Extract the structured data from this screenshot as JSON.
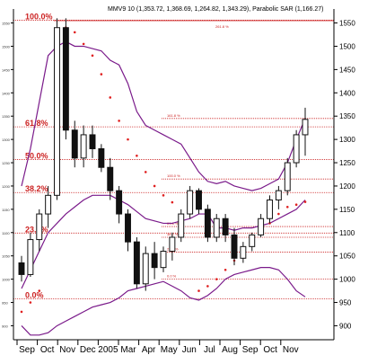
{
  "chart_data": {
    "type": "candlestick",
    "title": "MMV9 10 (1,353.72, 1,368.69, 1,264.82, 1,343.29), Parabolic SAR (1,166.27)",
    "xlabel": "",
    "ylabel": "",
    "ylim": [
      870,
      1580
    ],
    "y_ticks": [
      900,
      950,
      1000,
      1050,
      1100,
      1150,
      1200,
      1250,
      1300,
      1350,
      1400,
      1450,
      1500,
      1550
    ],
    "x_ticks": [
      "Sep",
      "Oct",
      "Nov",
      "Dec",
      "2005",
      "Mar",
      "Apr",
      "May",
      "Jun",
      "Jul",
      "Aug",
      "Sep",
      "Oct",
      "Nov"
    ],
    "grid": false,
    "candles": [
      {
        "open": 1035,
        "high": 1050,
        "low": 995,
        "close": 1010
      },
      {
        "open": 1010,
        "high": 1100,
        "low": 1005,
        "close": 1085
      },
      {
        "open": 1085,
        "high": 1150,
        "low": 1060,
        "close": 1140
      },
      {
        "open": 1140,
        "high": 1200,
        "low": 1110,
        "close": 1180
      },
      {
        "open": 1180,
        "high": 1560,
        "low": 1170,
        "close": 1540
      },
      {
        "open": 1540,
        "high": 1560,
        "low": 1300,
        "close": 1320
      },
      {
        "open": 1320,
        "high": 1340,
        "low": 1240,
        "close": 1260
      },
      {
        "open": 1260,
        "high": 1330,
        "low": 1240,
        "close": 1310
      },
      {
        "open": 1310,
        "high": 1330,
        "low": 1260,
        "close": 1280
      },
      {
        "open": 1280,
        "high": 1290,
        "low": 1230,
        "close": 1240
      },
      {
        "open": 1240,
        "high": 1260,
        "low": 1170,
        "close": 1190
      },
      {
        "open": 1190,
        "high": 1200,
        "low": 1120,
        "close": 1140
      },
      {
        "open": 1140,
        "high": 1150,
        "low": 1060,
        "close": 1080
      },
      {
        "open": 1080,
        "high": 1090,
        "low": 980,
        "close": 990
      },
      {
        "open": 990,
        "high": 1070,
        "low": 975,
        "close": 1055
      },
      {
        "open": 1055,
        "high": 1080,
        "low": 1000,
        "close": 1025
      },
      {
        "open": 1025,
        "high": 1070,
        "low": 1015,
        "close": 1060
      },
      {
        "open": 1060,
        "high": 1100,
        "low": 1040,
        "close": 1090
      },
      {
        "open": 1090,
        "high": 1150,
        "low": 1080,
        "close": 1140
      },
      {
        "open": 1140,
        "high": 1200,
        "low": 1130,
        "close": 1190
      },
      {
        "open": 1190,
        "high": 1195,
        "low": 1140,
        "close": 1150
      },
      {
        "open": 1150,
        "high": 1160,
        "low": 1080,
        "close": 1090
      },
      {
        "open": 1090,
        "high": 1140,
        "low": 1080,
        "close": 1130
      },
      {
        "open": 1130,
        "high": 1140,
        "low": 1080,
        "close": 1095
      },
      {
        "open": 1095,
        "high": 1110,
        "low": 1030,
        "close": 1045
      },
      {
        "open": 1045,
        "high": 1080,
        "low": 1035,
        "close": 1070
      },
      {
        "open": 1070,
        "high": 1100,
        "low": 1060,
        "close": 1095
      },
      {
        "open": 1095,
        "high": 1140,
        "low": 1090,
        "close": 1130
      },
      {
        "open": 1130,
        "high": 1180,
        "low": 1120,
        "close": 1170
      },
      {
        "open": 1170,
        "high": 1200,
        "low": 1150,
        "close": 1190
      },
      {
        "open": 1190,
        "high": 1260,
        "low": 1180,
        "close": 1250
      },
      {
        "open": 1250,
        "high": 1320,
        "low": 1240,
        "close": 1310
      },
      {
        "open": 1310,
        "high": 1368,
        "low": 1265,
        "close": 1343
      }
    ],
    "fibonacci_left": [
      {
        "label": "100.0%",
        "value": 1556
      },
      {
        "label": "61.8%",
        "value": 1327
      },
      {
        "label": "50.0%",
        "value": 1257
      },
      {
        "label": "38.2%",
        "value": 1186
      },
      {
        "label": "23.6%",
        "value": 1099
      },
      {
        "label": "0.0%",
        "value": 958
      }
    ],
    "fibonacci_right": [
      {
        "label": "161.8 %",
        "value": 1345
      },
      {
        "label": "100.0 %",
        "value": 1215
      },
      {
        "label": "61.8 %",
        "value": 1113
      },
      {
        "label": "38.2 %",
        "value": 1090
      },
      {
        "label": "23.6 %",
        "value": 1058
      },
      {
        "label": "0.0 %",
        "value": 1000
      }
    ],
    "fibonacci_top_label": {
      "label": "261.8 %",
      "value": 1555
    },
    "bollinger_upper": [
      1200,
      1280,
      1380,
      1480,
      1500,
      1510,
      1500,
      1500,
      1495,
      1490,
      1470,
      1460,
      1420,
      1360,
      1330,
      1320,
      1310,
      1300,
      1290,
      1260,
      1230,
      1210,
      1205,
      1210,
      1200,
      1195,
      1190,
      1195,
      1205,
      1215,
      1250,
      1300,
      1345
    ],
    "bollinger_middle": [
      980,
      1020,
      1060,
      1100,
      1120,
      1140,
      1155,
      1170,
      1180,
      1180,
      1180,
      1170,
      1160,
      1145,
      1130,
      1125,
      1120,
      1120,
      1125,
      1130,
      1140,
      1140,
      1110,
      1110,
      1105,
      1110,
      1110,
      1115,
      1120,
      1130,
      1140,
      1150,
      1170
    ],
    "bollinger_lower": [
      900,
      880,
      880,
      885,
      900,
      910,
      920,
      930,
      940,
      945,
      950,
      960,
      975,
      980,
      985,
      990,
      995,
      985,
      975,
      960,
      955,
      965,
      980,
      1000,
      1010,
      1015,
      1020,
      1025,
      1025,
      1020,
      1000,
      975,
      962
    ],
    "sar": [
      {
        "i": 0,
        "value": 930
      },
      {
        "i": 1,
        "value": 950
      },
      {
        "i": 2,
        "value": 975
      },
      {
        "i": 5,
        "value": 1540
      },
      {
        "i": 6,
        "value": 1530
      },
      {
        "i": 7,
        "value": 1505
      },
      {
        "i": 8,
        "value": 1480
      },
      {
        "i": 9,
        "value": 1440
      },
      {
        "i": 10,
        "value": 1390
      },
      {
        "i": 11,
        "value": 1340
      },
      {
        "i": 12,
        "value": 1300
      },
      {
        "i": 13,
        "value": 1265
      },
      {
        "i": 14,
        "value": 1230
      },
      {
        "i": 15,
        "value": 1200
      },
      {
        "i": 16,
        "value": 1180
      },
      {
        "i": 17,
        "value": 1165
      },
      {
        "i": 20,
        "value": 975
      },
      {
        "i": 21,
        "value": 985
      },
      {
        "i": 22,
        "value": 1000
      },
      {
        "i": 23,
        "value": 1020
      },
      {
        "i": 24,
        "value": 1040
      },
      {
        "i": 25,
        "value": 1060
      },
      {
        "i": 26,
        "value": 1080
      },
      {
        "i": 27,
        "value": 1100
      },
      {
        "i": 28,
        "value": 1120
      },
      {
        "i": 29,
        "value": 1140
      },
      {
        "i": 30,
        "value": 1155
      },
      {
        "i": 31,
        "value": 1160
      },
      {
        "i": 32,
        "value": 1166
      }
    ]
  },
  "colors": {
    "candle": "#111111",
    "fibonacci": "#cc2222",
    "bollinger": "#7a1a8a",
    "sar": "#e02020",
    "axis": "#000000"
  }
}
